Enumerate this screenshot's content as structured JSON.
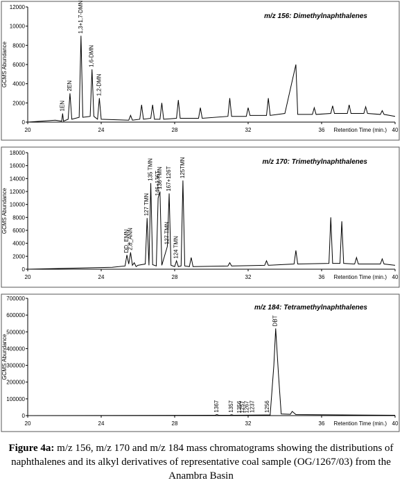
{
  "charts": [
    {
      "chart_data": {
        "type": "line",
        "title": "m/z 156: Dimethylnaphthalenes",
        "x_label": "Retention Time (min.)",
        "y_label": "GCMS Abundance",
        "x": [
          20,
          21.5,
          21.85,
          21.9,
          21.95,
          22.2,
          22.3,
          22.4,
          22.8,
          22.9,
          23.0,
          23.4,
          23.5,
          23.6,
          23.8,
          23.9,
          24.0,
          25.5,
          25.6,
          25.7,
          26.1,
          26.2,
          26.3,
          26.7,
          26.8,
          26.9,
          27.2,
          27.3,
          27.4,
          28.1,
          28.2,
          28.3,
          29.3,
          29.4,
          29.5,
          30.9,
          31.0,
          31.1,
          31.9,
          32.0,
          32.1,
          33.0,
          33.1,
          33.2,
          34.0,
          34.6,
          34.7,
          35.5,
          35.6,
          35.7,
          36.5,
          36.6,
          36.7,
          37.4,
          37.5,
          37.6,
          38.3,
          38.4,
          38.5,
          39.2,
          39.3,
          39.4,
          40
        ],
        "values": [
          0,
          200,
          100,
          900,
          100,
          300,
          3000,
          300,
          500,
          9000,
          500,
          600,
          5500,
          600,
          300,
          2500,
          300,
          200,
          700,
          200,
          300,
          1800,
          300,
          400,
          1800,
          300,
          300,
          2000,
          300,
          400,
          2300,
          400,
          400,
          1500,
          400,
          600,
          2500,
          600,
          600,
          1500,
          700,
          700,
          2500,
          700,
          900,
          6000,
          800,
          800,
          1500,
          800,
          900,
          1700,
          900,
          900,
          1800,
          900,
          900,
          1600,
          900,
          800,
          1200,
          800,
          600
        ],
        "color": "#000000",
        "annotations": [
          {
            "text": "1EN",
            "x": 21.9
          },
          {
            "text": "2EN",
            "x": 22.3
          },
          {
            "text": "1,3+1,7-DMN",
            "x": 22.9
          },
          {
            "text": "1,6-DMN",
            "x": 23.5
          },
          {
            "text": "1,2-DMN",
            "x": 23.9
          }
        ],
        "xlim": [
          20,
          40
        ],
        "xticks": [
          20,
          24,
          28,
          32,
          36,
          40
        ],
        "ylim": [
          0,
          12000
        ],
        "yticks": [
          0,
          2000,
          4000,
          6000,
          8000,
          10000,
          12000
        ]
      }
    },
    {
      "chart_data": {
        "type": "line",
        "title": "m/z 170: Trimethylnaphthalenes",
        "x_label": "Retention Time (min.)",
        "y_label": "GCMS Abundance",
        "x": [
          20,
          24.6,
          25.3,
          25.4,
          25.5,
          25.6,
          25.7,
          25.8,
          25.9,
          26.0,
          26.4,
          26.5,
          26.6,
          26.7,
          26.8,
          27.0,
          27.1,
          27.2,
          27.3,
          27.6,
          27.7,
          27.8,
          28.0,
          28.1,
          28.2,
          28.35,
          28.45,
          28.55,
          28.8,
          28.9,
          29.0,
          30.9,
          31.0,
          31.1,
          32.9,
          33.0,
          33.1,
          34.5,
          34.6,
          34.7,
          36.4,
          36.5,
          36.6,
          37.0,
          37.1,
          37.2,
          37.8,
          37.9,
          38.0,
          39.2,
          39.3,
          39.4,
          40
        ],
        "values": [
          0,
          300,
          500,
          2200,
          800,
          2600,
          600,
          1000,
          400,
          600,
          800,
          7900,
          600,
          13300,
          700,
          500,
          11000,
          12000,
          600,
          3500,
          11700,
          600,
          400,
          1300,
          400,
          500,
          13700,
          500,
          400,
          1800,
          400,
          500,
          1000,
          500,
          600,
          1300,
          600,
          800,
          2900,
          800,
          900,
          8000,
          900,
          900,
          7400,
          900,
          800,
          1800,
          800,
          800,
          1600,
          800,
          600
        ],
        "color": "#000000",
        "annotations": [
          {
            "text": "DD_EMN",
            "x": 25.4
          },
          {
            "text": "2,8_ANN",
            "x": 25.6
          },
          {
            "text": "127 TMN",
            "x": 26.5
          },
          {
            "text": "135 TMN",
            "x": 26.7
          },
          {
            "text": "146+136T",
            "x": 27.1
          },
          {
            "text": "136 TMN",
            "x": 27.2
          },
          {
            "text": "127 TMN",
            "x": 27.6
          },
          {
            "text": "167+126T",
            "x": 27.7
          },
          {
            "text": "124 TMN",
            "x": 28.1
          },
          {
            "text": "125TMN",
            "x": 28.45
          }
        ],
        "xlim": [
          20,
          40
        ],
        "xticks": [
          20,
          24,
          28,
          32,
          36,
          40
        ],
        "ylim": [
          0,
          18000
        ],
        "yticks": [
          0,
          2000,
          4000,
          6000,
          8000,
          10000,
          12000,
          14000,
          16000,
          18000
        ]
      }
    },
    {
      "chart_data": {
        "type": "line",
        "title": "m/z 184: Tetramethylnaphthalenes",
        "x_label": "Retention Time (min.)",
        "y_label": "GCMS Abundance",
        "x": [
          20,
          30,
          30.2,
          30.3,
          30.4,
          31.0,
          31.1,
          31.2,
          33.2,
          33.4,
          33.5,
          33.65,
          33.8,
          34.3,
          34.4,
          34.6,
          40
        ],
        "values": [
          0,
          2000,
          2000,
          6000,
          2000,
          2000,
          5000,
          2000,
          4000,
          300000,
          520000,
          250000,
          10000,
          8000,
          25000,
          6000,
          2000
        ],
        "color": "#000000",
        "annotations": [
          {
            "text": "1367",
            "x": 30.3
          },
          {
            "text": "1357",
            "x": 31.1
          },
          {
            "text": "1356",
            "x": 31.55
          },
          {
            "text": "1257",
            "x": 31.7
          },
          {
            "text": "1267",
            "x": 31.95
          },
          {
            "text": "1237",
            "x": 32.25
          },
          {
            "text": "1256",
            "x": 33.05
          },
          {
            "text": "DBT",
            "x": 33.5
          }
        ],
        "xlim": [
          20,
          40
        ],
        "xticks": [
          20,
          24,
          28,
          32,
          36,
          40
        ],
        "ylim": [
          0,
          700000
        ],
        "yticks": [
          0,
          100000,
          200000,
          300000,
          400000,
          500000,
          600000,
          700000
        ]
      }
    }
  ],
  "caption": {
    "label": "Figure 4a:",
    "text": "m/z 156, m/z 170 and m/z 184 mass chromatograms showing the distributions of naphthalenes and its alkyl derivatives of representative coal sample (OG/1267/03) from the Anambra Basin"
  }
}
